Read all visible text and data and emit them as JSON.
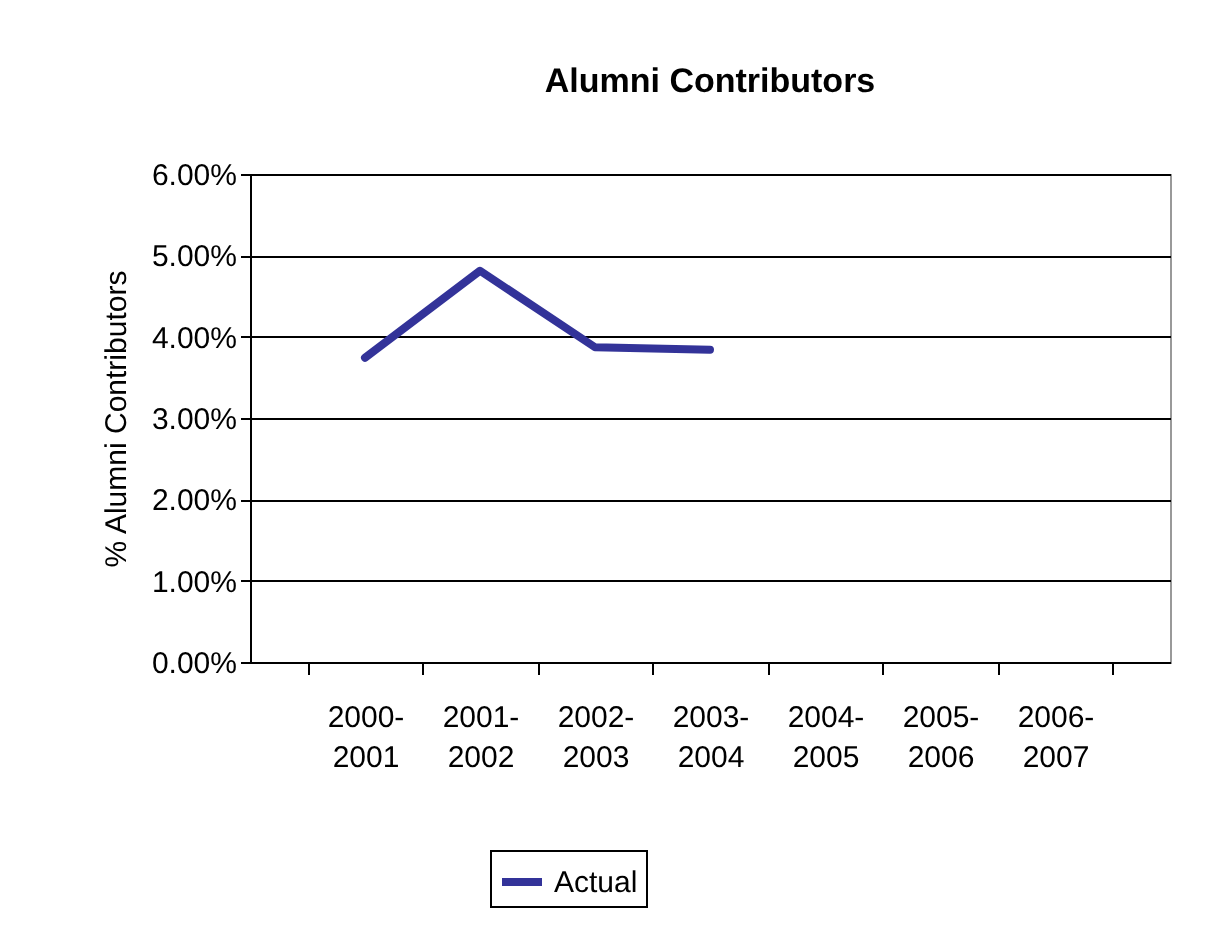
{
  "chart_data": {
    "type": "line",
    "title": "Alumni Contributors",
    "ylabel": "% Alumni Contributors",
    "categories": [
      "2000-2001",
      "2001-2002",
      "2002-2003",
      "2003-2004",
      "2004-2005",
      "2005-2006",
      "2006-2007"
    ],
    "series": [
      {
        "name": "Actual",
        "color": "#333399",
        "values": [
          3.74,
          4.81,
          3.87,
          3.84,
          null,
          null,
          null
        ]
      }
    ],
    "ylim": [
      0,
      6
    ],
    "yticks": [
      {
        "value": 0,
        "label": "0.00%"
      },
      {
        "value": 1,
        "label": "1.00%"
      },
      {
        "value": 2,
        "label": "2.00%"
      },
      {
        "value": 3,
        "label": "3.00%"
      },
      {
        "value": 4,
        "label": "4.00%"
      },
      {
        "value": 5,
        "label": "5.00%"
      },
      {
        "value": 6,
        "label": "6.00%"
      }
    ],
    "grid": "y",
    "legend": "bottom",
    "marker": "none",
    "line_style": "solid"
  }
}
